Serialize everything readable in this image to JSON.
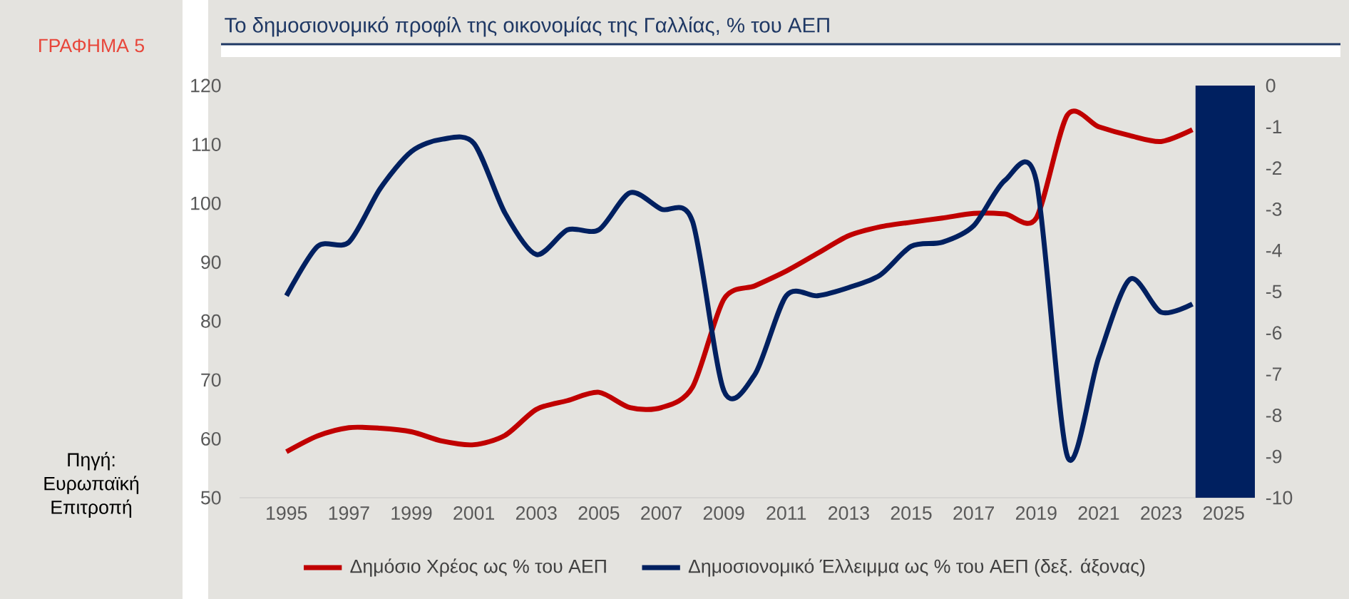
{
  "chart_data": {
    "type": "line",
    "title": "Το δημοσιονομικό προφίλ της οικονομίας της Γαλλίας, % του ΑΕΠ",
    "x": [
      1995,
      1996,
      1997,
      1998,
      1999,
      2000,
      2001,
      2002,
      2003,
      2004,
      2005,
      2006,
      2007,
      2008,
      2009,
      2010,
      2011,
      2012,
      2013,
      2014,
      2015,
      2016,
      2017,
      2018,
      2019,
      2020,
      2021,
      2022,
      2023,
      2024
    ],
    "series": [
      {
        "name": "Δημόσιο Χρέος ως % του ΑΕΠ",
        "color": "#c00000",
        "values": [
          57.8,
          60.5,
          61.9,
          61.8,
          61.2,
          59.6,
          59.0,
          60.6,
          65.0,
          66.5,
          67.9,
          65.3,
          65.3,
          68.8,
          83.7,
          86.0,
          88.5,
          91.5,
          94.5,
          96.0,
          96.8,
          97.5,
          98.3,
          98.2,
          97.5,
          115.0,
          113.0,
          111.5,
          110.5,
          112.5
        ]
      },
      {
        "name": "Δημοσιονομικό Έλλειμμα ως % του ΑΕΠ (δεξ. άξονας)",
        "color": "#002060",
        "axis": "y2",
        "values": [
          -5.1,
          -3.9,
          -3.8,
          -2.5,
          -1.6,
          -1.3,
          -1.4,
          -3.1,
          -4.1,
          -3.5,
          -3.5,
          -2.6,
          -3.0,
          -3.3,
          -7.4,
          -7.0,
          -5.1,
          -5.1,
          -4.9,
          -4.6,
          -3.9,
          -3.8,
          -3.4,
          -2.3,
          -2.3,
          -9.0,
          -6.6,
          -4.7,
          -5.5,
          -5.3
        ]
      }
    ],
    "xlim": [
      1993.5,
      2026
    ],
    "xticks": [
      1995,
      1997,
      1999,
      2001,
      2003,
      2005,
      2007,
      2009,
      2011,
      2013,
      2015,
      2017,
      2019,
      2021,
      2023,
      2025
    ],
    "ylim": [
      50,
      120
    ],
    "yticks": [
      50,
      60,
      70,
      80,
      90,
      100,
      110,
      120
    ],
    "y2lim": [
      -10,
      0
    ],
    "y2ticks": [
      -10,
      -9,
      -8,
      -7,
      -6,
      -5,
      -4,
      -3,
      -2,
      -1,
      0
    ],
    "bands": [
      {
        "axis": "x",
        "from": 2024.1,
        "to": 2026,
        "color": "#002060"
      }
    ],
    "legend": "bottom",
    "line_style": "solid",
    "annotations": [
      "ΓΡΑΦΗΜΑ 5",
      "Πηγή: Ευρωπαϊκή Επιτροπή"
    ]
  }
}
